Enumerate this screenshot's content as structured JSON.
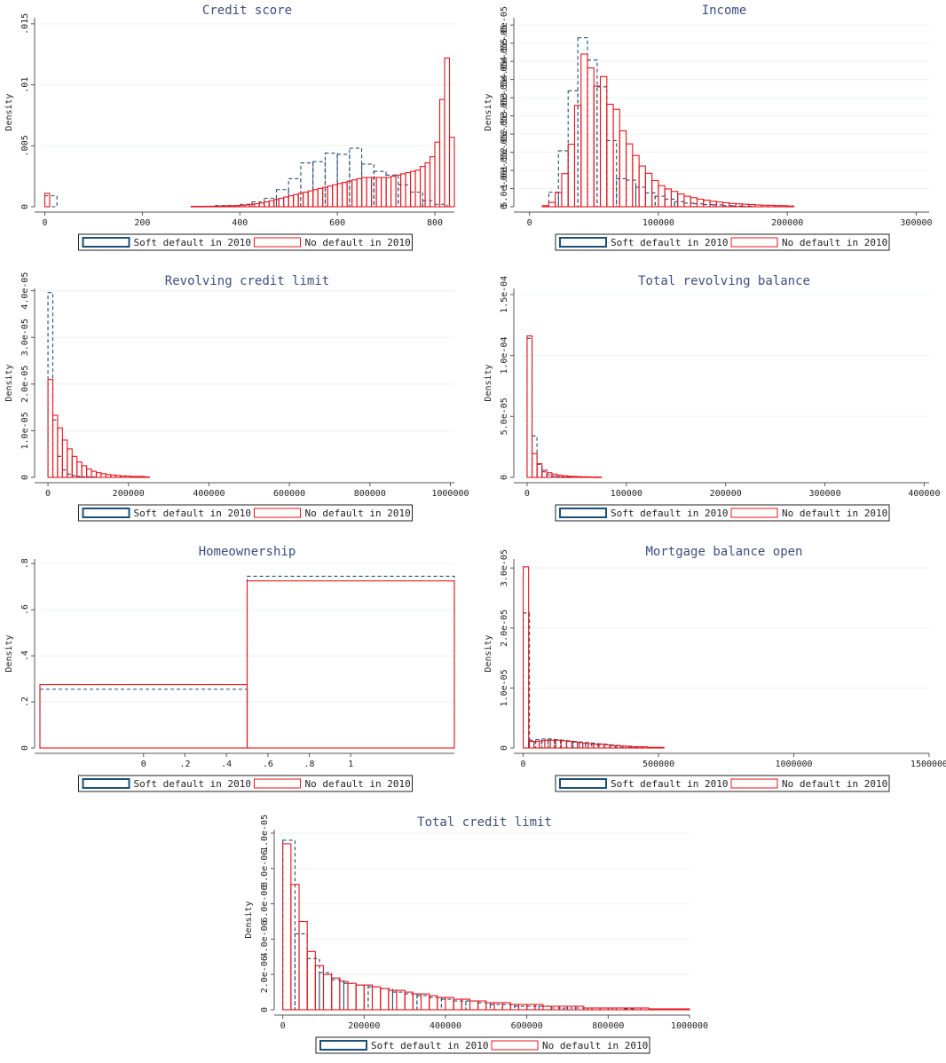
{
  "figure": {
    "legend": {
      "entries": [
        "Soft default in 2010",
        "No default in 2010"
      ],
      "placement": "bottom"
    },
    "colors": {
      "soft_default": "#1f4e79",
      "no_default": "#e8141c",
      "title": "#3c4e80",
      "grid": "#eef0f3"
    },
    "line_styles": {
      "soft_default": "dashed",
      "no_default": "solid"
    }
  },
  "chart_data": [
    {
      "type": "bar",
      "title": "Credit score",
      "ylabel": "Density",
      "xlabel": "",
      "grid": true,
      "xlim": [
        -10,
        840
      ],
      "ylim": [
        0,
        0.0155
      ],
      "xticks": [
        0,
        200,
        400,
        600,
        800
      ],
      "xtick_labels": [
        "0",
        "200",
        "400",
        "600",
        "800"
      ],
      "yticks": [
        0,
        0.005,
        0.01,
        0.015
      ],
      "ytick_labels": [
        "0",
        ".005",
        ".01",
        ".015"
      ],
      "series": [
        {
          "name": "Soft default in 2010",
          "bin_width": 25,
          "x": [
            0,
            350,
            375,
            400,
            425,
            450,
            475,
            500,
            525,
            550,
            575,
            600,
            625,
            650,
            675,
            700,
            725,
            750,
            775,
            800
          ],
          "values": [
            0.0009,
            0.0001,
            0.0001,
            0.0002,
            0.0004,
            0.0007,
            0.0014,
            0.0023,
            0.0036,
            0.0037,
            0.0044,
            0.0043,
            0.0048,
            0.0035,
            0.0029,
            0.0026,
            0.0018,
            0.0012,
            0.0005,
            0.0002
          ]
        },
        {
          "name": "No default in 2010",
          "bin_width": 10,
          "x": [
            0,
            300,
            310,
            320,
            330,
            340,
            350,
            360,
            370,
            380,
            390,
            400,
            410,
            420,
            430,
            440,
            450,
            460,
            470,
            480,
            490,
            500,
            510,
            520,
            530,
            540,
            550,
            560,
            570,
            580,
            590,
            600,
            610,
            620,
            630,
            640,
            650,
            660,
            670,
            680,
            690,
            700,
            710,
            720,
            730,
            740,
            750,
            760,
            770,
            780,
            790,
            800,
            810,
            820,
            830
          ],
          "values": [
            0.0011,
            3e-05,
            3e-05,
            3e-05,
            4e-05,
            4e-05,
            5e-05,
            6e-05,
            7e-05,
            8e-05,
            0.0001,
            0.00012,
            0.00015,
            0.0002,
            0.00025,
            0.0003,
            0.0004,
            0.0005,
            0.0006,
            0.0007,
            0.0008,
            0.0009,
            0.001,
            0.0011,
            0.0012,
            0.0013,
            0.0014,
            0.0015,
            0.0016,
            0.0017,
            0.0018,
            0.0019,
            0.002,
            0.0021,
            0.0022,
            0.0023,
            0.0024,
            0.0024,
            0.0024,
            0.0024,
            0.0024,
            0.0024,
            0.0025,
            0.0026,
            0.0027,
            0.0028,
            0.0029,
            0.003,
            0.0033,
            0.0036,
            0.0041,
            0.0053,
            0.0088,
            0.0122,
            0.0057
          ]
        }
      ]
    },
    {
      "type": "bar",
      "title": "Income",
      "ylabel": "Density",
      "xlabel": "",
      "grid": true,
      "xlim": [
        -8000,
        310000
      ],
      "ylim": [
        0,
        5.2e-05
      ],
      "xticks": [
        0,
        100000,
        200000,
        300000
      ],
      "xtick_labels": [
        "0",
        "100000",
        "200000",
        "300000"
      ],
      "yticks": [
        0,
        5e-06,
        1e-05,
        1.5e-05,
        2e-05,
        2.5e-05,
        3e-05,
        3.5e-05,
        4e-05,
        4.5e-05,
        5e-05
      ],
      "ytick_labels": [
        "0",
        "5.0e-06",
        "1.0e-05",
        "1.5e-05",
        "2.0e-05",
        "2.5e-05",
        "3.0e-05",
        "3.5e-05",
        "4.0e-05",
        "4.5e-05",
        "5.0e-05"
      ],
      "series": [
        {
          "name": "Soft default in 2010",
          "bin_width": 7500,
          "x": [
            15000,
            22500,
            30000,
            37500,
            45000,
            52500,
            60000,
            67500,
            75000,
            82500,
            90000,
            97500,
            105000,
            112500,
            120000,
            127500,
            135000,
            142500,
            150000,
            157500,
            165000
          ],
          "values": [
            4e-06,
            1.54e-05,
            3.19e-05,
            4.65e-05,
            4.04e-05,
            3.3e-05,
            1.82e-05,
            7.7e-06,
            7.3e-06,
            5.4e-06,
            3.8e-06,
            2.9e-06,
            2.1e-06,
            1.4e-06,
            1e-06,
            8e-07,
            6e-07,
            5e-07,
            3e-07,
            2e-07,
            1e-07
          ]
        },
        {
          "name": "No default in 2010",
          "bin_width": 5000,
          "x": [
            10000,
            15000,
            20000,
            25000,
            30000,
            35000,
            40000,
            45000,
            50000,
            55000,
            60000,
            65000,
            70000,
            75000,
            80000,
            85000,
            90000,
            95000,
            100000,
            105000,
            110000,
            115000,
            120000,
            125000,
            130000,
            135000,
            140000,
            145000,
            150000,
            155000,
            160000,
            165000,
            170000,
            175000,
            180000,
            185000,
            190000,
            195000,
            200000
          ],
          "values": [
            3e-07,
            1.2e-06,
            3.9e-06,
            9.1e-06,
            1.72e-05,
            2.79e-05,
            4.2e-05,
            3.82e-05,
            3.32e-05,
            3.58e-05,
            2.82e-05,
            2.68e-05,
            2.09e-05,
            1.73e-05,
            1.41e-05,
            1.12e-05,
            9.2e-06,
            7.2e-06,
            5.8e-06,
            4.9e-06,
            4.2e-06,
            3.5e-06,
            2.9e-06,
            2.5e-06,
            2.1e-06,
            1.8e-06,
            1.5e-06,
            1.3e-06,
            1.1e-06,
            9e-07,
            8e-07,
            7e-07,
            6e-07,
            5e-07,
            4e-07,
            4e-07,
            3e-07,
            3e-07,
            2e-07
          ]
        }
      ]
    },
    {
      "type": "bar",
      "title": "Revolving credit limit",
      "ylabel": "Density",
      "xlabel": "",
      "grid": true,
      "xlim": [
        -20000,
        1010000
      ],
      "ylim": [
        0,
        4.05e-05
      ],
      "xticks": [
        0,
        200000,
        400000,
        600000,
        800000,
        1000000
      ],
      "xtick_labels": [
        "0",
        "200000",
        "400000",
        "600000",
        "800000",
        "1000000"
      ],
      "yticks": [
        0,
        1e-05,
        2e-05,
        3e-05,
        4e-05
      ],
      "ytick_labels": [
        "0",
        "1.0e-05",
        "2.0e-05",
        "3.0e-05",
        "4.0e-05"
      ],
      "series": [
        {
          "name": "Soft default in 2010",
          "bin_width": 12000,
          "x": [
            0,
            12000,
            24000,
            36000,
            48000,
            60000,
            72000,
            84000,
            96000,
            108000
          ],
          "values": [
            3.96e-05,
            1.23e-05,
            4.5e-06,
            1.6e-06,
            7e-07,
            4e-07,
            2e-07,
            1e-07,
            1e-07,
            1e-07
          ]
        },
        {
          "name": "No default in 2010",
          "bin_width": 12000,
          "x": [
            0,
            12000,
            24000,
            36000,
            48000,
            60000,
            72000,
            84000,
            96000,
            108000,
            120000,
            132000,
            144000,
            156000,
            168000,
            180000,
            192000,
            204000,
            216000,
            228000,
            240000
          ],
          "values": [
            2.1e-05,
            1.33e-05,
            1.06e-05,
            8e-06,
            6.1e-06,
            4.5e-06,
            3.3e-06,
            2.5e-06,
            1.8e-06,
            1.3e-06,
            1e-06,
            8e-07,
            6e-07,
            5e-07,
            4e-07,
            3e-07,
            3e-07,
            2e-07,
            2e-07,
            2e-07,
            1e-07
          ]
        }
      ]
    },
    {
      "type": "bar",
      "title": "Total revolving balance",
      "ylabel": "Density",
      "xlabel": "",
      "grid": true,
      "xlim": [
        -8000,
        405000
      ],
      "ylim": [
        0,
        0.000155
      ],
      "xticks": [
        0,
        100000,
        200000,
        300000,
        400000
      ],
      "xtick_labels": [
        "0",
        "100000",
        "200000",
        "300000",
        "400000"
      ],
      "yticks": [
        0,
        5e-05,
        0.0001,
        0.00015
      ],
      "ytick_labels": [
        "0",
        "5.0e-05",
        "1.0e-04",
        "1.5e-04"
      ],
      "series": [
        {
          "name": "Soft default in 2010",
          "bin_width": 5000,
          "x": [
            0,
            5000,
            10000,
            15000,
            20000,
            25000,
            30000,
            35000,
            40000
          ],
          "values": [
            0.000114,
            3.4e-05,
            1.07e-05,
            4.6e-06,
            2.1e-06,
            1.1e-06,
            6e-07,
            3e-07,
            2e-07
          ]
        },
        {
          "name": "No default in 2010",
          "bin_width": 5000,
          "x": [
            0,
            5000,
            10000,
            15000,
            20000,
            25000,
            30000,
            35000,
            40000,
            45000,
            50000,
            55000,
            60000,
            65000,
            70000
          ],
          "values": [
            0.000116,
            1.95e-05,
            1.12e-05,
            5.9e-06,
            3.8e-06,
            2.7e-06,
            1.9e-06,
            1.4e-06,
            1e-06,
            8e-07,
            6e-07,
            5e-07,
            4e-07,
            3e-07,
            2e-07
          ]
        }
      ]
    },
    {
      "type": "bar",
      "title": "Homeownership",
      "ylabel": "Density",
      "xlabel": "",
      "grid": true,
      "xlim": [
        -0.5,
        1.5
      ],
      "ylim": [
        0,
        0.82
      ],
      "xticks": [
        0,
        0.2,
        0.4,
        0.6,
        0.8,
        1
      ],
      "xtick_labels": [
        "0",
        ".2",
        ".4",
        ".6",
        ".8",
        "1"
      ],
      "yticks": [
        0,
        0.2,
        0.4,
        0.6,
        0.8
      ],
      "ytick_labels": [
        "0",
        ".2",
        ".4",
        ".6",
        ".8"
      ],
      "series": [
        {
          "name": "Soft default in 2010",
          "bin_width": 1,
          "x": [
            -0.5,
            0.5
          ],
          "values": [
            0.255,
            0.745
          ]
        },
        {
          "name": "No default in 2010",
          "bin_width": 1,
          "x": [
            -0.5,
            0.5
          ],
          "values": [
            0.275,
            0.725
          ]
        }
      ]
    },
    {
      "type": "bar",
      "title": "Mortgage balance open",
      "ylabel": "Density",
      "xlabel": "",
      "grid": true,
      "xlim": [
        -15000,
        1500000
      ],
      "ylim": [
        0,
        3.15e-05
      ],
      "xticks": [
        0,
        500000,
        1000000,
        1500000
      ],
      "xtick_labels": [
        "0",
        "500000",
        "1000000",
        "1500000"
      ],
      "yticks": [
        0,
        1e-05,
        2e-05,
        3e-05
      ],
      "ytick_labels": [
        "0",
        "1.0e-05",
        "2.0e-05",
        "3.0e-05"
      ],
      "series": [
        {
          "name": "Soft default in 2010",
          "bin_width": 23000,
          "x": [
            0,
            23000,
            46000,
            69000,
            92000,
            115000,
            138000,
            161000,
            184000,
            207000,
            230000,
            253000,
            276000,
            299000,
            322000,
            345000,
            368000,
            391000,
            414000
          ],
          "values": [
            2.25e-05,
            1.3e-06,
            1.4e-06,
            1.5e-06,
            1.5e-06,
            1.4e-06,
            1.3e-06,
            1.2e-06,
            1.1e-06,
            1e-06,
            9e-07,
            8e-07,
            7e-07,
            6e-07,
            5e-07,
            4e-07,
            3e-07,
            2e-07,
            2e-07
          ]
        },
        {
          "name": "No default in 2010",
          "bin_width": 20000,
          "x": [
            0,
            20000,
            40000,
            60000,
            80000,
            100000,
            120000,
            140000,
            160000,
            180000,
            200000,
            220000,
            240000,
            260000,
            280000,
            300000,
            320000,
            340000,
            360000,
            380000,
            400000,
            420000,
            440000,
            460000,
            480000,
            500000
          ],
          "values": [
            3.02e-05,
            1.1e-06,
            1.1e-06,
            1.2e-06,
            1.3e-06,
            1.3e-06,
            1.3e-06,
            1.2e-06,
            1.1e-06,
            1e-06,
            9e-07,
            8e-07,
            7e-07,
            6e-07,
            6e-07,
            5e-07,
            4e-07,
            4e-07,
            3e-07,
            3e-07,
            2e-07,
            2e-07,
            2e-07,
            1e-07,
            1e-07,
            1e-07
          ]
        }
      ]
    },
    {
      "type": "bar",
      "title": "Total credit limit",
      "ylabel": "Density",
      "xlabel": "",
      "grid": true,
      "xlim": [
        -8000,
        1000000
      ],
      "ylim": [
        0,
        1.02e-05
      ],
      "xticks": [
        0,
        200000,
        400000,
        600000,
        800000,
        1000000
      ],
      "xtick_labels": [
        "0",
        "200000",
        "400000",
        "600000",
        "800000",
        "1000000"
      ],
      "yticks": [
        0,
        2e-06,
        4e-06,
        6e-06,
        8e-06,
        1e-05
      ],
      "ytick_labels": [
        "0",
        "2.0e-06",
        "4.0e-06",
        "6.0e-06",
        "8.0e-06",
        "1.0e-05"
      ],
      "series": [
        {
          "name": "Soft default in 2010",
          "bin_width": 30000,
          "x": [
            0,
            30000,
            60000,
            90000,
            120000,
            150000,
            180000,
            210000,
            240000,
            270000,
            300000,
            330000,
            360000,
            390000,
            420000,
            450000,
            480000,
            510000,
            540000,
            570000,
            600000,
            630000,
            660000,
            690000,
            720000,
            750000,
            780000,
            810000,
            840000
          ],
          "values": [
            9.6e-06,
            4.3e-06,
            2.9e-06,
            2.1e-06,
            1.7e-06,
            1.5e-06,
            1.4e-06,
            1.3e-06,
            1.2e-06,
            1e-06,
            9e-07,
            8e-07,
            7e-07,
            6e-07,
            5e-07,
            5e-07,
            4e-07,
            3e-07,
            3e-07,
            2e-07,
            2e-07,
            2e-07,
            1e-07,
            1e-07,
            1e-07,
            1e-07,
            1e-07,
            1e-07,
            5e-08
          ]
        },
        {
          "name": "No default in 2010",
          "bin_width": 20000,
          "x": [
            0,
            20000,
            40000,
            60000,
            80000,
            100000,
            120000,
            140000,
            160000,
            180000,
            200000,
            220000,
            240000,
            260000,
            280000,
            300000,
            320000,
            340000,
            360000,
            380000,
            400000,
            420000,
            440000,
            460000,
            480000,
            500000,
            520000,
            540000,
            560000,
            580000,
            600000,
            620000,
            640000,
            660000,
            680000,
            700000,
            720000,
            740000,
            760000,
            780000,
            800000,
            820000,
            840000,
            860000,
            880000,
            900000,
            920000,
            940000,
            960000,
            980000
          ],
          "values": [
            9.4e-06,
            7.1e-06,
            5e-06,
            3.3e-06,
            2.5e-06,
            2e-06,
            1.8e-06,
            1.6e-06,
            1.5e-06,
            1.4e-06,
            1.4e-06,
            1.3e-06,
            1.2e-06,
            1.1e-06,
            1.1e-06,
            1e-06,
            9e-07,
            9e-07,
            8e-07,
            7e-07,
            7e-07,
            6e-07,
            6e-07,
            5e-07,
            5e-07,
            4e-07,
            4e-07,
            4e-07,
            3e-07,
            3e-07,
            3e-07,
            3e-07,
            2e-07,
            2e-07,
            2e-07,
            2e-07,
            2e-07,
            1e-07,
            1e-07,
            1e-07,
            1e-07,
            1e-07,
            1e-07,
            1e-07,
            1e-07,
            5e-08,
            5e-08,
            5e-08,
            5e-08,
            5e-08
          ]
        }
      ]
    }
  ]
}
